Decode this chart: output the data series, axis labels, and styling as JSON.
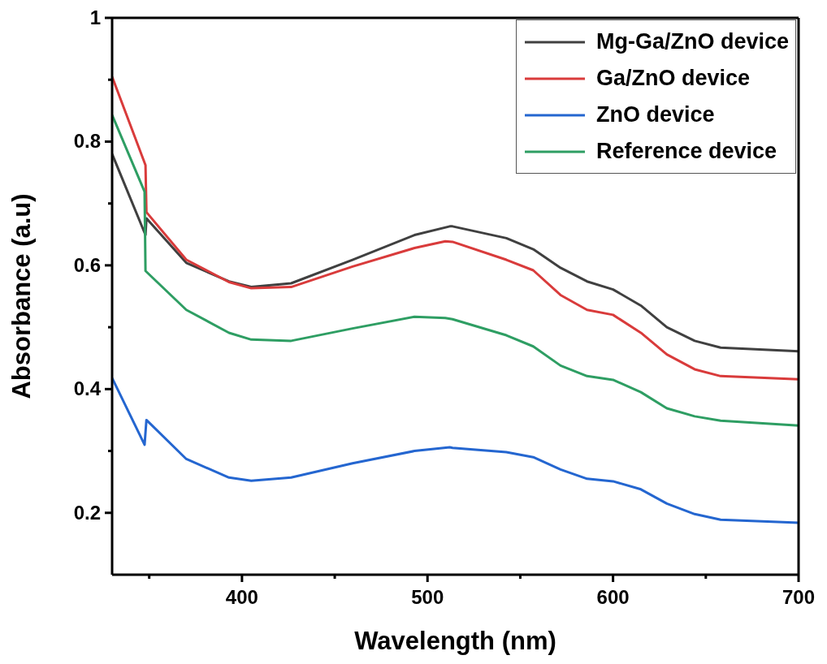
{
  "chart_data": {
    "type": "line",
    "xlabel": "Wavelength (nm)",
    "ylabel": "Absorbance (a.u)",
    "xlim": [
      330,
      700
    ],
    "xticks": [
      {
        "value": 350,
        "label": null
      },
      400,
      {
        "value": 450,
        "label": null
      },
      500,
      {
        "value": 550,
        "label": null
      },
      600,
      {
        "value": 650,
        "label": null
      },
      700
    ],
    "ylim": [
      0.1,
      1
    ],
    "yticks": [
      0.2,
      {
        "value": 0.3,
        "label": null
      },
      0.4,
      {
        "value": 0.5,
        "label": null
      },
      0.6,
      {
        "value": 0.7,
        "label": null
      },
      0.8,
      {
        "value": 0.9,
        "label": null
      },
      1
    ],
    "legend": "top right",
    "marker": "none",
    "line_style": "solid",
    "series": [
      {
        "name": "Mg-Ga/ZnO device",
        "color": "#404040",
        "x": [
          330,
          348,
          348.5,
          370,
          393,
          405,
          426.5,
          459.6,
          493,
          512,
          513.5,
          542.5,
          557,
          571.7,
          586,
          600,
          615,
          629,
          644,
          658,
          700
        ],
        "values": [
          0.78,
          0.649,
          0.676,
          0.604,
          0.574,
          0.565,
          0.571,
          0.609,
          0.649,
          0.663,
          0.663,
          0.644,
          0.626,
          0.596,
          0.574,
          0.561,
          0.535,
          0.5,
          0.478,
          0.467,
          0.461
        ]
      },
      {
        "name": "Ga/ZnO device",
        "color": "#d93b3b",
        "x": [
          330,
          348,
          348.5,
          370,
          393,
          405,
          426.5,
          459.6,
          493,
          509.6,
          513.5,
          542.5,
          557,
          571.7,
          586,
          600,
          615,
          629,
          644,
          658,
          700
        ],
        "values": [
          0.905,
          0.762,
          0.686,
          0.609,
          0.573,
          0.563,
          0.565,
          0.598,
          0.628,
          0.639,
          0.638,
          0.609,
          0.592,
          0.552,
          0.528,
          0.52,
          0.491,
          0.456,
          0.432,
          0.421,
          0.416
        ]
      },
      {
        "name": "ZnO device",
        "color": "#2466d0",
        "x": [
          330,
          347.5,
          348.5,
          370,
          393,
          405,
          426.5,
          459.6,
          493,
          512,
          513.5,
          542.5,
          557,
          571.7,
          586,
          600,
          615,
          629,
          644,
          658,
          700
        ],
        "values": [
          0.418,
          0.31,
          0.35,
          0.287,
          0.257,
          0.252,
          0.257,
          0.28,
          0.3,
          0.306,
          0.305,
          0.298,
          0.29,
          0.27,
          0.255,
          0.251,
          0.238,
          0.215,
          0.198,
          0.189,
          0.184
        ]
      },
      {
        "name": "Reference device",
        "color": "#2e9e63",
        "x": [
          330,
          347.5,
          348,
          370,
          393,
          405,
          426.5,
          459.6,
          493,
          509.6,
          513.5,
          542.5,
          557,
          571.7,
          586,
          600,
          615,
          629,
          644,
          658,
          700
        ],
        "values": [
          0.843,
          0.719,
          0.591,
          0.528,
          0.491,
          0.48,
          0.478,
          0.498,
          0.517,
          0.515,
          0.513,
          0.487,
          0.469,
          0.438,
          0.421,
          0.415,
          0.395,
          0.369,
          0.356,
          0.349,
          0.341
        ]
      }
    ]
  }
}
